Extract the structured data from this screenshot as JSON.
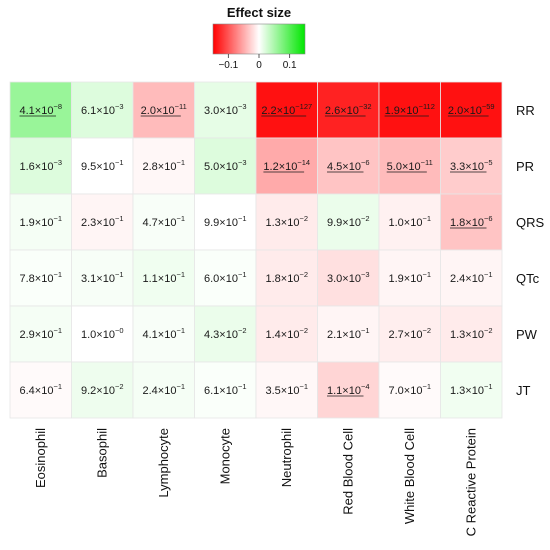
{
  "chart_data": {
    "type": "heatmap",
    "legend": {
      "title": "Effect size",
      "colors": [
        "#ff0000",
        "#ffffff",
        "#00e600"
      ],
      "ticks": [
        {
          "value": -0.1,
          "label": "−0.1"
        },
        {
          "value": 0,
          "label": "0"
        },
        {
          "value": 0.1,
          "label": "0.1"
        }
      ],
      "range": [
        -0.15,
        0.15
      ]
    },
    "rows": [
      "RR",
      "PR",
      "QRS",
      "QTc",
      "PW",
      "JT"
    ],
    "columns": [
      "Eosinophil",
      "Basophil",
      "Lymphocyte",
      "Monocyte",
      "Neutrophil",
      "Red Blood Cell",
      "White Blood Cell",
      "C Reactive Protein"
    ],
    "cells": [
      [
        {
          "mantissa": "4.1",
          "exponent": "−8",
          "effect": 0.06,
          "underline": true
        },
        {
          "mantissa": "6.1",
          "exponent": "−3",
          "effect": 0.02,
          "underline": false
        },
        {
          "mantissa": "2.0",
          "exponent": "−11",
          "effect": -0.04,
          "underline": true
        },
        {
          "mantissa": "3.0",
          "exponent": "−3",
          "effect": 0.015,
          "underline": false
        },
        {
          "mantissa": "2.2",
          "exponent": "−127",
          "effect": -0.14,
          "underline": true
        },
        {
          "mantissa": "2.6",
          "exponent": "−32",
          "effect": -0.13,
          "underline": true
        },
        {
          "mantissa": "1.9",
          "exponent": "−112",
          "effect": -0.14,
          "underline": true
        },
        {
          "mantissa": "2.0",
          "exponent": "−59",
          "effect": -0.14,
          "underline": true
        }
      ],
      [
        {
          "mantissa": "1.6",
          "exponent": "−3",
          "effect": 0.02,
          "underline": false
        },
        {
          "mantissa": "9.5",
          "exponent": "−1",
          "effect": 0.0,
          "underline": false
        },
        {
          "mantissa": "2.8",
          "exponent": "−1",
          "effect": -0.005,
          "underline": false
        },
        {
          "mantissa": "5.0",
          "exponent": "−3",
          "effect": 0.02,
          "underline": false
        },
        {
          "mantissa": "1.2",
          "exponent": "−14",
          "effect": -0.05,
          "underline": true
        },
        {
          "mantissa": "4.5",
          "exponent": "−6",
          "effect": -0.035,
          "underline": true
        },
        {
          "mantissa": "5.0",
          "exponent": "−11",
          "effect": -0.04,
          "underline": true
        },
        {
          "mantissa": "3.3",
          "exponent": "−5",
          "effect": -0.03,
          "underline": true
        }
      ],
      [
        {
          "mantissa": "1.9",
          "exponent": "−1",
          "effect": 0.006,
          "underline": false
        },
        {
          "mantissa": "2.3",
          "exponent": "−1",
          "effect": -0.006,
          "underline": false
        },
        {
          "mantissa": "4.7",
          "exponent": "−1",
          "effect": 0.004,
          "underline": false
        },
        {
          "mantissa": "9.9",
          "exponent": "−1",
          "effect": 0.0,
          "underline": false
        },
        {
          "mantissa": "1.3",
          "exponent": "−2",
          "effect": -0.012,
          "underline": false
        },
        {
          "mantissa": "9.9",
          "exponent": "−2",
          "effect": 0.012,
          "underline": false
        },
        {
          "mantissa": "1.0",
          "exponent": "−1",
          "effect": -0.008,
          "underline": false
        },
        {
          "mantissa": "1.8",
          "exponent": "−6",
          "effect": -0.035,
          "underline": true
        }
      ],
      [
        {
          "mantissa": "7.8",
          "exponent": "−1",
          "effect": 0.003,
          "underline": false
        },
        {
          "mantissa": "3.1",
          "exponent": "−1",
          "effect": 0.005,
          "underline": false
        },
        {
          "mantissa": "1.1",
          "exponent": "−1",
          "effect": 0.009,
          "underline": false
        },
        {
          "mantissa": "6.0",
          "exponent": "−1",
          "effect": 0.003,
          "underline": false
        },
        {
          "mantissa": "1.8",
          "exponent": "−2",
          "effect": -0.012,
          "underline": false
        },
        {
          "mantissa": "3.0",
          "exponent": "−3",
          "effect": -0.018,
          "underline": false
        },
        {
          "mantissa": "1.9",
          "exponent": "−1",
          "effect": -0.006,
          "underline": false
        },
        {
          "mantissa": "2.4",
          "exponent": "−1",
          "effect": -0.006,
          "underline": false
        }
      ],
      [
        {
          "mantissa": "2.9",
          "exponent": "−1",
          "effect": 0.006,
          "underline": false
        },
        {
          "mantissa": "1.0",
          "exponent": "−0",
          "effect": 0.0,
          "underline": false
        },
        {
          "mantissa": "4.1",
          "exponent": "−1",
          "effect": 0.004,
          "underline": false
        },
        {
          "mantissa": "4.3",
          "exponent": "−2",
          "effect": 0.012,
          "underline": false
        },
        {
          "mantissa": "1.4",
          "exponent": "−2",
          "effect": -0.012,
          "underline": false
        },
        {
          "mantissa": "2.1",
          "exponent": "−1",
          "effect": -0.006,
          "underline": false
        },
        {
          "mantissa": "2.7",
          "exponent": "−2",
          "effect": -0.01,
          "underline": false
        },
        {
          "mantissa": "1.3",
          "exponent": "−2",
          "effect": -0.012,
          "underline": false
        }
      ],
      [
        {
          "mantissa": "6.4",
          "exponent": "−1",
          "effect": -0.003,
          "underline": false
        },
        {
          "mantissa": "9.2",
          "exponent": "−2",
          "effect": 0.01,
          "underline": false
        },
        {
          "mantissa": "2.4",
          "exponent": "−1",
          "effect": 0.006,
          "underline": false
        },
        {
          "mantissa": "6.1",
          "exponent": "−1",
          "effect": 0.003,
          "underline": false
        },
        {
          "mantissa": "3.5",
          "exponent": "−1",
          "effect": -0.005,
          "underline": false
        },
        {
          "mantissa": "1.1",
          "exponent": "−4",
          "effect": -0.025,
          "underline": true
        },
        {
          "mantissa": "7.0",
          "exponent": "−1",
          "effect": -0.003,
          "underline": false
        },
        {
          "mantissa": "1.3",
          "exponent": "−1",
          "effect": 0.008,
          "underline": false
        }
      ]
    ]
  }
}
